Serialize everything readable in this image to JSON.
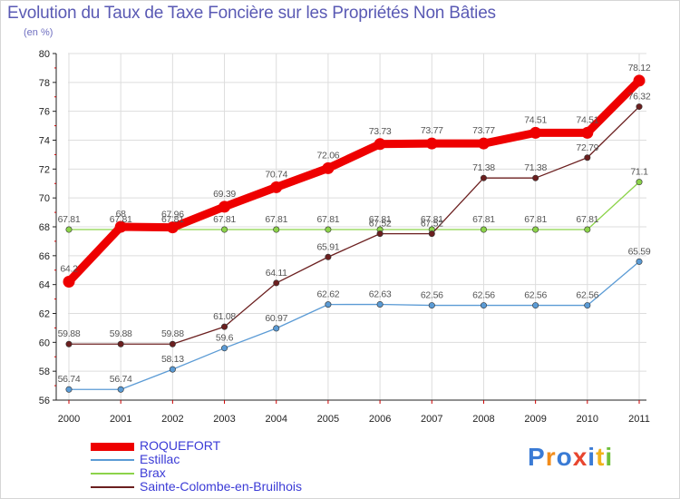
{
  "title": "Evolution du Taux de Taxe Foncière sur les Propriétés Non Bâties",
  "subtitle": "(en %)",
  "logo": {
    "text": "Proxiti",
    "colors": [
      "#3a7bd5",
      "#f28c1b",
      "#3a7bd5",
      "#e8462f",
      "#3a7bd5",
      "#f2b21b",
      "#6fbf3a"
    ]
  },
  "chart_data": {
    "type": "line",
    "title": "Evolution du Taux de Taxe Foncière sur les Propriétés Non Bâties",
    "ylabel": "(en %)",
    "xlabel": "",
    "ylim": [
      56,
      80
    ],
    "yticks": [
      56,
      58,
      60,
      62,
      64,
      66,
      68,
      70,
      72,
      74,
      76,
      78,
      80
    ],
    "x": [
      "2000",
      "2001",
      "2002",
      "2003",
      "2004",
      "2005",
      "2006",
      "2007",
      "2008",
      "2009",
      "2010",
      "2011"
    ],
    "series": [
      {
        "name": "Brax",
        "color": "#8cd34a",
        "values": [
          67.81,
          67.81,
          67.81,
          67.81,
          67.81,
          67.81,
          67.81,
          67.81,
          67.81,
          67.81,
          67.81,
          71.1
        ],
        "labels": [
          "67.81",
          "67.81",
          "67.81",
          "67.81",
          "67.81",
          "67.81",
          "67.81",
          "67.81",
          "67.81",
          "67.81",
          "67.81",
          "71.1"
        ]
      },
      {
        "name": "Estillac",
        "color": "#5b9bd5",
        "values": [
          56.74,
          56.74,
          58.13,
          59.6,
          60.97,
          62.62,
          62.63,
          62.56,
          62.56,
          62.56,
          62.56,
          65.59
        ],
        "labels": [
          "56.74",
          "56.74",
          "58.13",
          "59.6",
          "60.97",
          "62.62",
          "62.63",
          "62.56",
          "62.56",
          "62.56",
          "62.56",
          "65.59"
        ]
      },
      {
        "name": "Sainte-Colombe-en-Bruilhois",
        "color": "#6b1f1f",
        "values": [
          59.88,
          59.88,
          59.88,
          61.08,
          64.11,
          65.91,
          67.52,
          67.52,
          71.38,
          71.38,
          72.79,
          76.32
        ],
        "labels": [
          "59.88",
          "59.88",
          "59.88",
          "61.08",
          "64.11",
          "65.91",
          "67.52",
          "67.52",
          "71.38",
          "71.38",
          "72.79",
          "76.32"
        ]
      },
      {
        "name": "ROQUEFORT",
        "color": "#ee0000",
        "values": [
          64.2,
          68,
          67.96,
          69.39,
          70.74,
          72.06,
          73.73,
          73.77,
          73.77,
          74.51,
          74.51,
          78.12
        ],
        "labels": [
          "64.2",
          "68",
          "67.96",
          "69.39",
          "70.74",
          "72.06",
          "73.73",
          "73.77",
          "73.77",
          "74.51",
          "74.51",
          "78.12"
        ]
      }
    ],
    "legend": [
      "ROQUEFORT",
      "Estillac",
      "Brax",
      "Sainte-Colombe-en-Bruilhois"
    ]
  }
}
